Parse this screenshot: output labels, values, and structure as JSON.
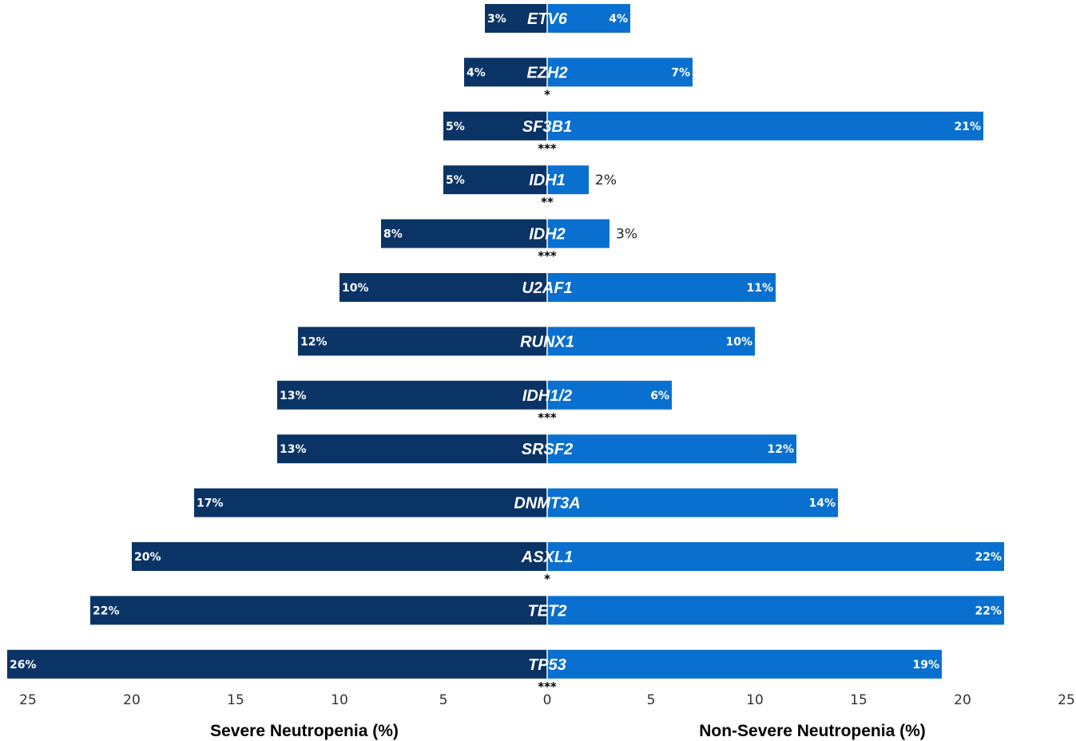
{
  "chart_data": {
    "type": "bar",
    "orientation": "horizontal-butterfly",
    "categories": [
      "ETV6",
      "EZH2",
      "SF3B1",
      "IDH1",
      "IDH2",
      "U2AF1",
      "RUNX1",
      "IDH1/2",
      "SRSF2",
      "DNMT3A",
      "ASXL1",
      "TET2",
      "TP53"
    ],
    "series": [
      {
        "name": "Severe Neutropenia (%)",
        "side": "left",
        "color": "#0b3466",
        "values": [
          3,
          4,
          5,
          5,
          8,
          10,
          12,
          13,
          13,
          17,
          20,
          22,
          26
        ],
        "labels": [
          "3%",
          "4%",
          "5%",
          "5%",
          "8%",
          "10%",
          "12%",
          "13%",
          "13%",
          "17%",
          "20%",
          "22%",
          "26%"
        ]
      },
      {
        "name": "Non-Severe Neutropenia (%)",
        "side": "right",
        "color": "#0a70cf",
        "values": [
          4,
          7,
          21,
          2,
          3,
          11,
          10,
          6,
          12,
          14,
          22,
          22,
          19
        ],
        "labels": [
          "4%",
          "7%",
          "21%",
          "2%",
          "3%",
          "11%",
          "10%",
          "6%",
          "12%",
          "14%",
          "22%",
          "22%",
          "19%"
        ]
      }
    ],
    "significance": [
      "",
      "*",
      "***",
      "**",
      "***",
      "",
      "",
      "***",
      "",
      "",
      "*",
      "",
      "***"
    ],
    "left_ticks": [
      "25",
      "20",
      "15",
      "10",
      "5"
    ],
    "right_ticks": [
      "0",
      "5",
      "10",
      "15",
      "20",
      "25"
    ],
    "xlim": [
      0,
      25
    ],
    "xlabel_left": "Severe Neutropenia (%)",
    "xlabel_right": "Non-Severe Neutropenia (%)",
    "grid": false,
    "legend": "none"
  }
}
